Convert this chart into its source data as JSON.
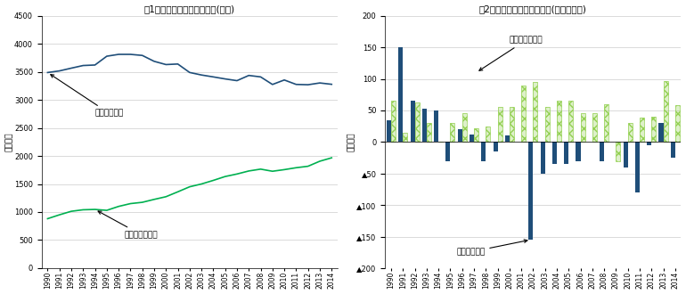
{
  "fig1_title": "図1　正規・非正規雇用者数(実数)",
  "fig2_title": "図2　正規・非正規雇用者数(対前年増減)",
  "ylabel1": "（万人）",
  "ylabel2": "（万人）",
  "label_regular": "正規雇用者数",
  "label_irregular": "非正規雇用者数",
  "years": [
    1990,
    1991,
    1992,
    1993,
    1994,
    1995,
    1996,
    1997,
    1998,
    1999,
    2000,
    2001,
    2002,
    2003,
    2004,
    2005,
    2006,
    2007,
    2008,
    2009,
    2010,
    2011,
    2012,
    2013,
    2014
  ],
  "regular": [
    3488,
    3517,
    3566,
    3613,
    3622,
    3779,
    3812,
    3812,
    3793,
    3688,
    3630,
    3640,
    3489,
    3444,
    3410,
    3374,
    3343,
    3436,
    3410,
    3275,
    3355,
    3276,
    3270,
    3302,
    3278
  ],
  "irregular": [
    881,
    950,
    1013,
    1040,
    1046,
    1030,
    1100,
    1150,
    1173,
    1225,
    1273,
    1360,
    1450,
    1500,
    1564,
    1633,
    1678,
    1732,
    1765,
    1727,
    1756,
    1790,
    1816,
    1906,
    1967
  ],
  "regular_yoy": [
    35,
    150,
    65,
    52,
    50,
    -30,
    20,
    12,
    -30,
    -15,
    10,
    0,
    -155,
    -50,
    -35,
    -35,
    -30,
    0,
    -30,
    0,
    -40,
    -80,
    -5,
    30,
    -25
  ],
  "irregular_yoy": [
    65,
    15,
    62,
    30,
    0,
    30,
    45,
    22,
    25,
    55,
    55,
    90,
    95,
    55,
    65,
    65,
    45,
    45,
    60,
    -30,
    30,
    38,
    40,
    97,
    58
  ],
  "regular_color": "#1F4E79",
  "irregular_line_color": "#00B050",
  "irregular_bar_color": "#92D050",
  "ylim1": [
    0,
    4500
  ],
  "ylim2": [
    -200,
    200
  ],
  "yticks1": [
    0,
    500,
    1000,
    1500,
    2000,
    2500,
    3000,
    3500,
    4000,
    4500
  ],
  "yticks2": [
    -200,
    -150,
    -100,
    -50,
    0,
    50,
    100,
    150,
    200
  ],
  "ytick_labels2": [
    "▲200",
    "▲150",
    "▲100",
    "▲50",
    "0",
    "50",
    "100",
    "150",
    "200"
  ],
  "bg_color": "#FFFFFF",
  "grid_color": "#CCCCCC"
}
